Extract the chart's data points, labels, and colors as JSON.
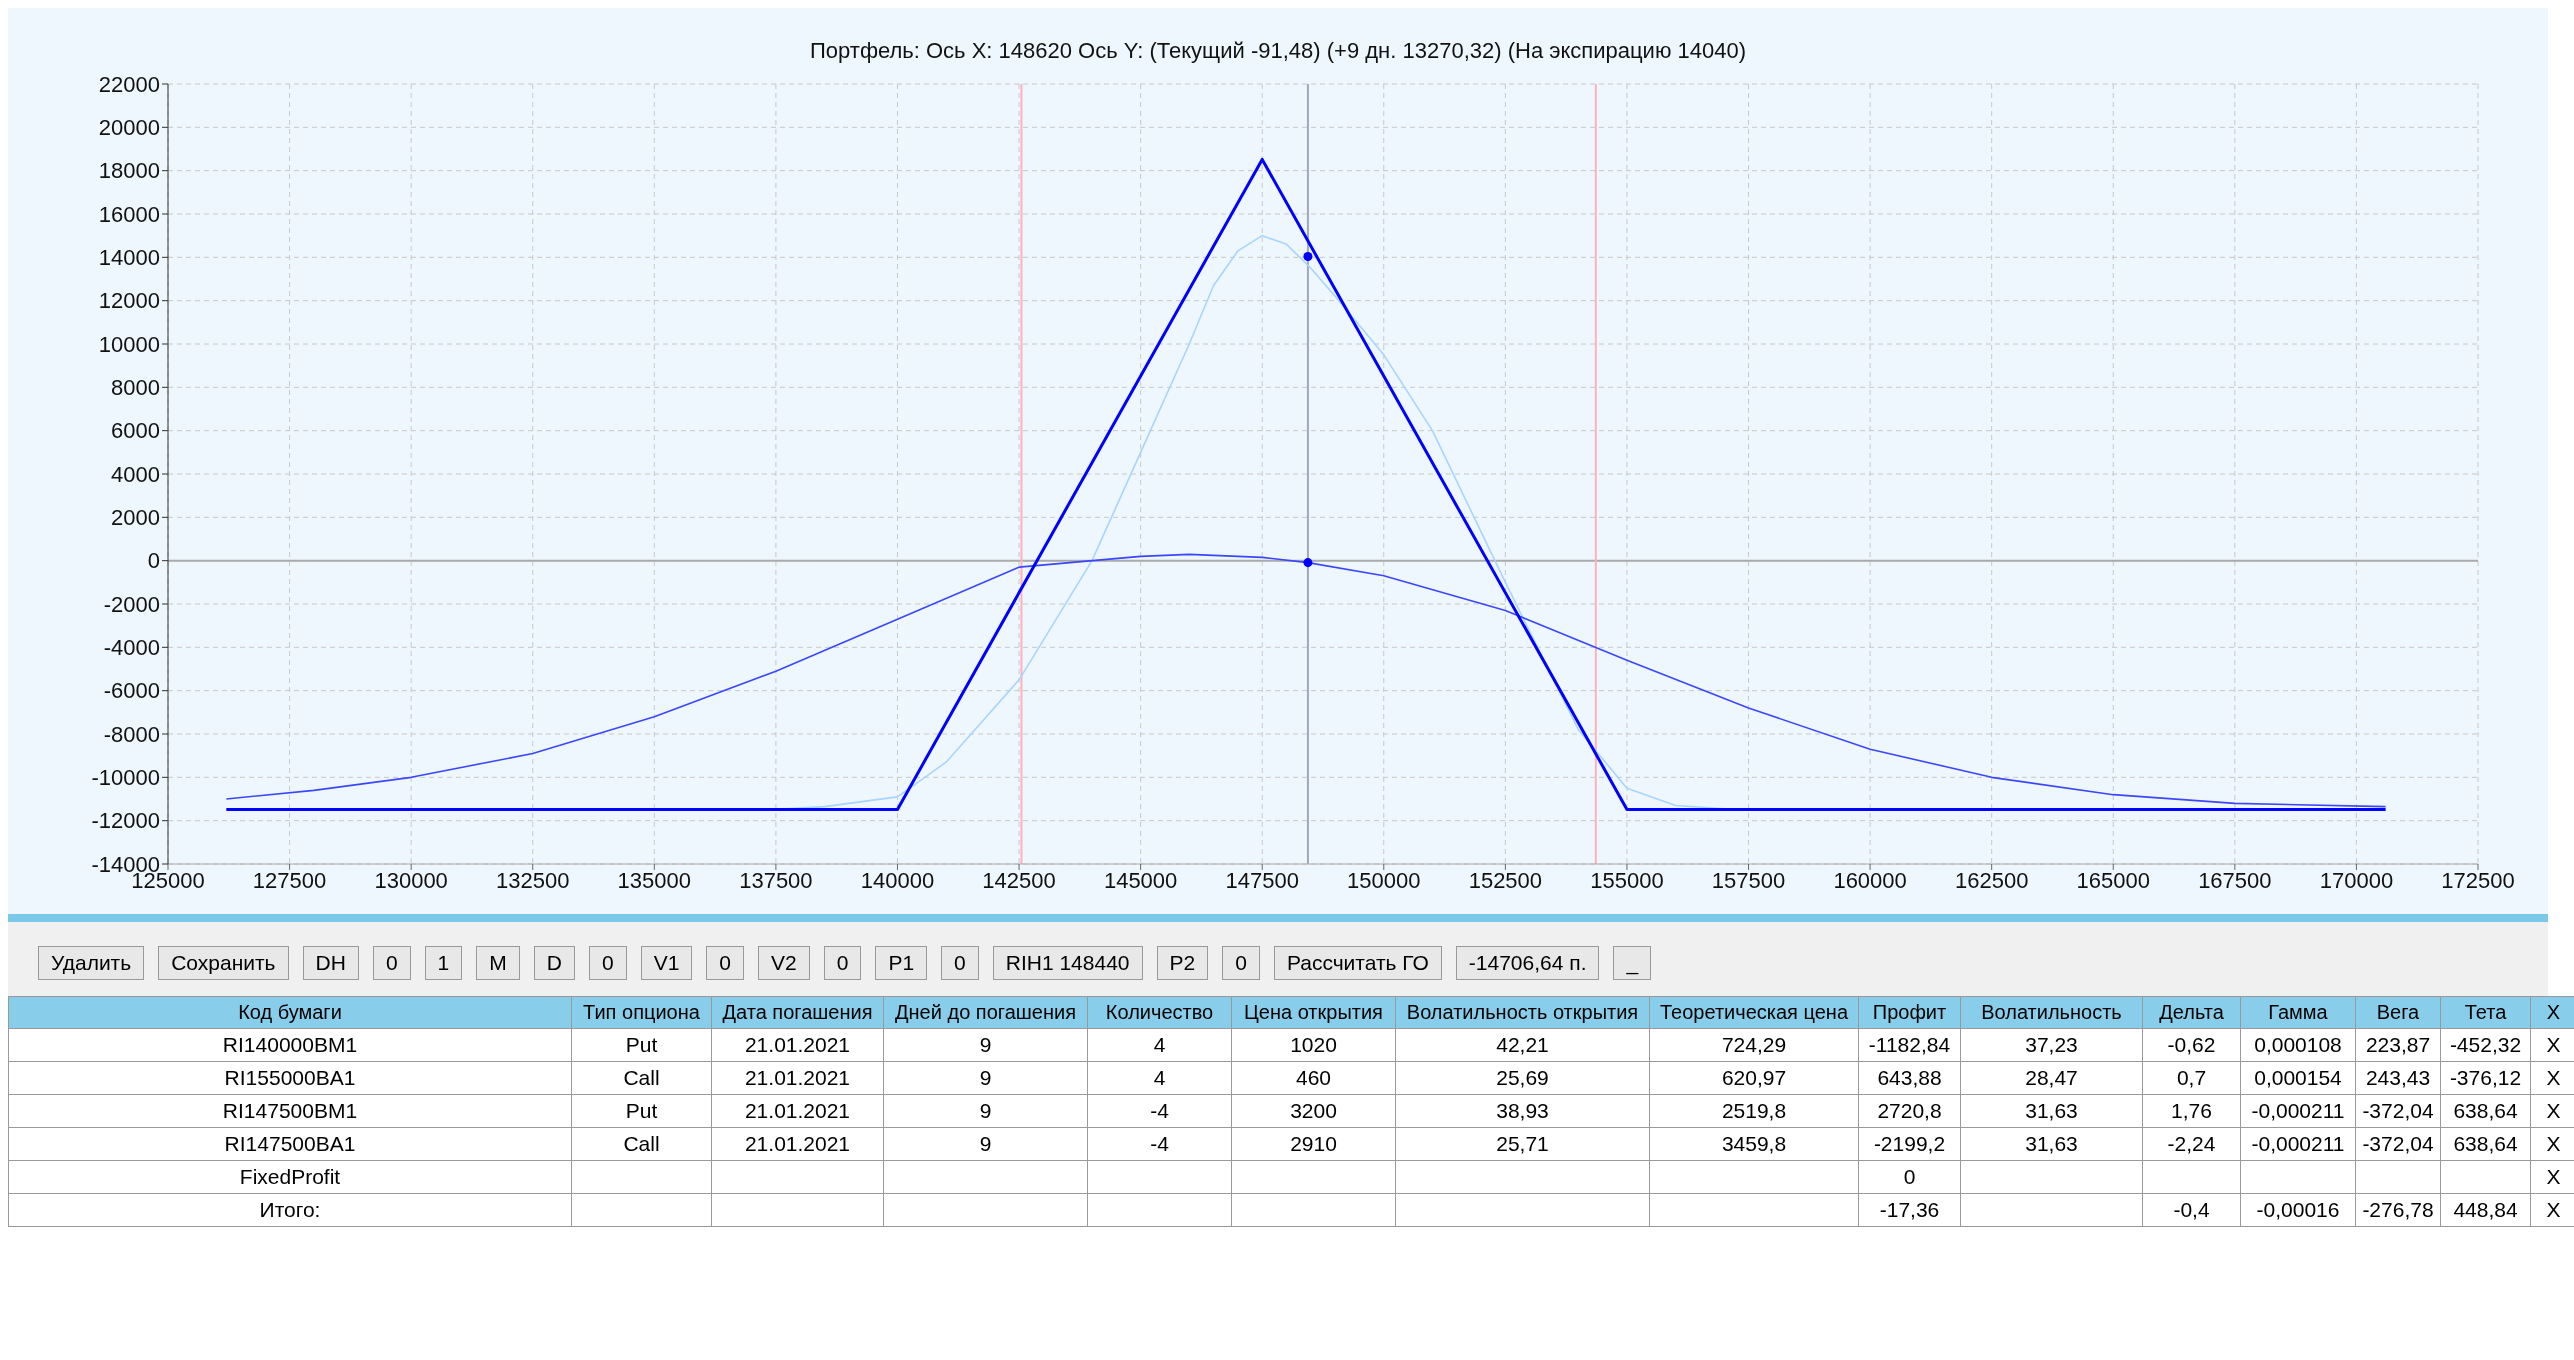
{
  "chart_data": [
    {
      "type": "line",
      "title": "Портфель: Ось X: 148620 Ось Y:  (Текущий -91,48)  (+9 дн. 13270,32)  (На экспирацию 14040)",
      "xlim": [
        125000,
        172500
      ],
      "xticks": [
        125000,
        127500,
        130000,
        132500,
        135000,
        137500,
        140000,
        142500,
        145000,
        147500,
        150000,
        152500,
        155000,
        157500,
        160000,
        162500,
        165000,
        167500,
        170000,
        172500
      ],
      "ylim": [
        -14000,
        22000
      ],
      "yticks": [
        -14000,
        -12000,
        -10000,
        -8000,
        -6000,
        -4000,
        -2000,
        0,
        2000,
        4000,
        6000,
        8000,
        10000,
        12000,
        14000,
        16000,
        18000,
        20000,
        22000
      ],
      "grid": true,
      "line_style": "solid",
      "ref_lines": [
        {
          "axis": "x",
          "value": 142550,
          "color": "#ffb0b8"
        },
        {
          "axis": "x",
          "value": 154360,
          "color": "#ffb0b8"
        },
        {
          "axis": "x",
          "value": 148440,
          "color": "#a0a8b8"
        }
      ],
      "series": [
        {
          "color": "#a8d4ff",
          "x": [
            126200,
            137500,
            138500,
            140000,
            141000,
            142500,
            144000,
            145000,
            146000,
            146500,
            147000,
            147500,
            148000,
            148500,
            149000,
            150000,
            151000,
            152500,
            154000,
            155000,
            156000,
            157000,
            170600
          ],
          "values": [
            -11480,
            -11480,
            -11350,
            -10900,
            -9300,
            -5500,
            0,
            5000,
            10000,
            12700,
            14300,
            15000,
            14600,
            13500,
            12200,
            9500,
            6000,
            -1000,
            -7800,
            -10500,
            -11300,
            -11450,
            -11480
          ]
        },
        {
          "color": "#3a46ff",
          "x": [
            126200,
            128000,
            130000,
            132500,
            135000,
            137500,
            140000,
            142500,
            145000,
            146000,
            147500,
            148440,
            150000,
            152500,
            155000,
            157500,
            160000,
            162500,
            165000,
            167500,
            170600
          ],
          "values": [
            -11000,
            -10600,
            -10000,
            -8900,
            -7200,
            -5100,
            -2700,
            -300,
            200,
            290,
            150,
            -90,
            -700,
            -2300,
            -4600,
            -6800,
            -8700,
            -10000,
            -10800,
            -11200,
            -11350
          ]
        },
        {
          "color": "#0000ff",
          "x": [
            126200,
            140000,
            147500,
            155000,
            170600
          ],
          "values": [
            -11480,
            -11480,
            18520,
            -11480,
            -11480
          ]
        },
        {
          "type": "scatter",
          "color": "#0000ff",
          "x": [
            148440,
            148440
          ],
          "values": [
            14040,
            -90
          ]
        }
      ]
    },
    {
      "type": "other",
      "annotations": [
        "Удалить",
        "Сохранить",
        "DH",
        "0",
        "1",
        "M",
        "D",
        "0",
        "V1",
        "0",
        "V2",
        "0",
        "P1",
        "0",
        "RIH1 148440",
        "P2",
        "0",
        "Рассчитать ГО",
        "-14706,64 п.",
        "_"
      ],
      "categories": [
        "Код бумаги",
        "Тип опциона",
        "Дата погашения",
        "Дней до погашения",
        "Количество",
        "Цена открытия",
        "Волатильность открытия",
        "Теоретическая цена",
        "Профит",
        "Волатильность",
        "Дельта",
        "Гамма",
        "Вега",
        "Тета",
        "X"
      ],
      "cell_labels": [
        [
          "RI140000BM1",
          "Put",
          "21.01.2021",
          "9",
          "4",
          "1020",
          "42,21",
          "724,29",
          "-1182,84",
          "37,23",
          "-0,62",
          "0,000108",
          "223,87",
          "-452,32",
          "X"
        ],
        [
          "RI155000BA1",
          "Call",
          "21.01.2021",
          "9",
          "4",
          "460",
          "25,69",
          "620,97",
          "643,88",
          "28,47",
          "0,7",
          "0,000154",
          "243,43",
          "-376,12",
          "X"
        ],
        [
          "RI147500BM1",
          "Put",
          "21.01.2021",
          "9",
          "-4",
          "3200",
          "38,93",
          "2519,8",
          "2720,8",
          "31,63",
          "1,76",
          "-0,000211",
          "-372,04",
          "638,64",
          "X"
        ],
        [
          "RI147500BA1",
          "Call",
          "21.01.2021",
          "9",
          "-4",
          "2910",
          "25,71",
          "3459,8",
          "-2199,2",
          "31,63",
          "-2,24",
          "-0,000211",
          "-372,04",
          "638,64",
          "X"
        ],
        [
          "FixedProfit",
          null,
          null,
          null,
          null,
          null,
          null,
          null,
          "0",
          null,
          null,
          null,
          null,
          null,
          "X"
        ],
        [
          "Итого:",
          null,
          null,
          null,
          null,
          null,
          null,
          null,
          "-17,36",
          null,
          "-0,4",
          "-0,00016",
          "-276,78",
          "448,84",
          "X"
        ]
      ]
    }
  ]
}
